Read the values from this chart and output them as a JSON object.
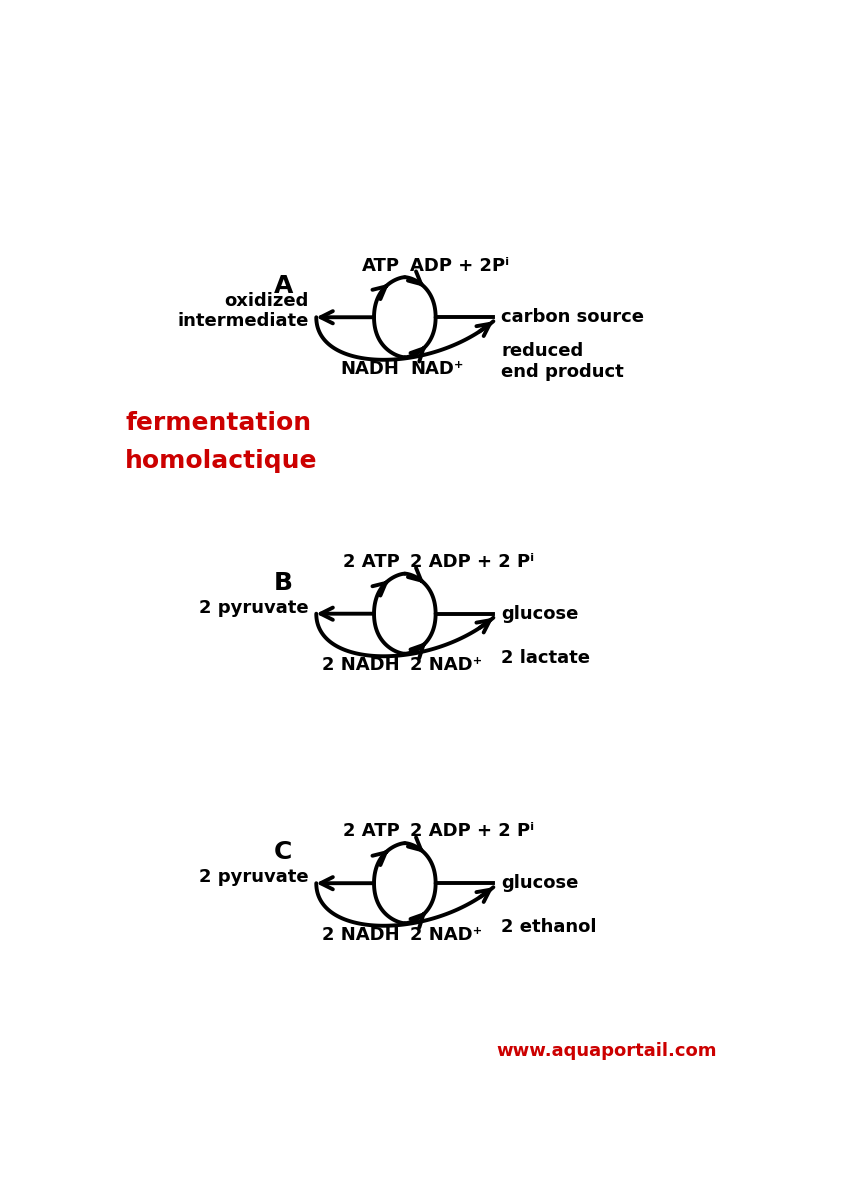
{
  "bg_color": "#ffffff",
  "label_A": "A",
  "label_B": "B",
  "label_C": "C",
  "fermentation_text1": "fermentation",
  "fermentation_text2": "homolactique",
  "fermentation_color": "#cc0000",
  "website": "www.aquaportail.com",
  "website_color": "#cc0000",
  "panel_A": {
    "top_left_label": "ATP",
    "top_right_label": "ADP + 2Pⁱ",
    "left_label1": "oxidized",
    "left_label2": "intermediate",
    "right_label": "carbon source",
    "mid_left_label": "NADH",
    "mid_right_label": "NAD⁺",
    "bottom_right_label1": "reduced",
    "bottom_right_label2": "end product"
  },
  "panel_B": {
    "top_left_label": "2 ATP",
    "top_right_label": "2 ADP + 2 Pⁱ",
    "left_label1": "2 pyruvate",
    "right_label": "glucose",
    "mid_left_label": "2 NADH",
    "mid_right_label": "2 NAD⁺",
    "bottom_right_label": "2 lactate"
  },
  "panel_C": {
    "top_left_label": "2 ATP",
    "top_right_label": "2 ADP + 2 Pⁱ",
    "left_label1": "2 pyruvate",
    "right_label": "glucose",
    "mid_left_label": "2 NADH",
    "mid_right_label": "2 NAD⁺",
    "bottom_right_label": "2 ethanol"
  },
  "figw": 8.5,
  "figh": 12.0,
  "dpi": 100
}
